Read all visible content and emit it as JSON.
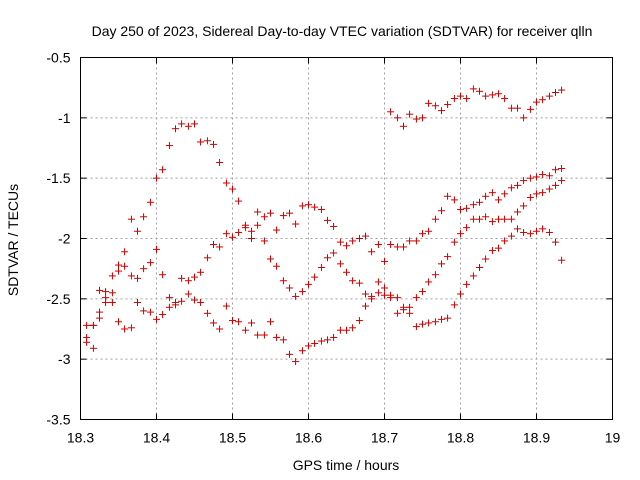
{
  "chart_data": {
    "type": "scatter",
    "title": "Day 250 of 2023, Sidereal Day-to-day VTEC variation (SDTVAR) for receiver qlln",
    "xlabel": "GPS time / hours",
    "ylabel": "SDTVAR / TECUs",
    "xlim": [
      18.3,
      19.0
    ],
    "ylim": [
      -3.5,
      -0.5
    ],
    "xticks": [
      "18.3",
      "18.4",
      "18.5",
      "18.6",
      "18.7",
      "18.8",
      "18.9",
      "19"
    ],
    "yticks": [
      "-0.5",
      "-1",
      "-1.5",
      "-2",
      "-2.5",
      "-3",
      "-3.5"
    ],
    "grid": true,
    "marker": "+",
    "color": "#d00000",
    "series": [
      {
        "x": [
          18.308,
          18.317,
          18.325,
          18.333,
          18.342,
          18.35,
          18.358,
          18.367,
          18.375,
          18.383,
          18.392,
          18.4,
          18.408,
          18.417,
          18.425,
          18.433,
          18.442,
          18.45,
          18.458,
          18.467,
          18.475,
          18.483,
          18.492,
          18.5,
          18.508,
          18.517,
          18.525,
          18.533,
          18.542,
          18.55,
          18.558,
          18.567,
          18.575,
          18.583,
          18.592,
          18.6,
          18.608,
          18.617,
          18.625,
          18.633,
          18.642,
          18.65,
          18.658,
          18.667,
          18.675,
          18.683,
          18.692,
          18.7,
          18.708,
          18.717,
          18.725,
          18.733,
          18.742,
          18.75,
          18.758,
          18.767,
          18.775,
          18.783,
          18.792,
          18.8,
          18.808,
          18.817,
          18.825,
          18.833,
          18.842,
          18.85,
          18.858,
          18.867,
          18.875,
          18.883,
          18.892,
          18.9,
          18.908,
          18.917,
          18.925,
          18.933
        ],
        "y": [
          -2.82,
          -2.72,
          -2.66,
          -2.49,
          -2.45,
          -2.22,
          -2.11,
          -1.84,
          -1.94,
          -1.82,
          -1.7,
          -1.5,
          -1.43,
          -1.23,
          -1.09,
          -1.05,
          -1.07,
          -1.05,
          -1.2,
          -1.19,
          -1.22,
          -1.37,
          -1.54,
          -1.59,
          -1.69,
          -1.89,
          -1.94,
          -1.78,
          -1.82,
          -1.79,
          -1.93,
          -1.81,
          -1.79,
          -1.88,
          -1.73,
          -1.72,
          -1.74,
          -1.76,
          -1.85,
          -1.9,
          -2.03,
          -2.06,
          -2.02,
          -2.0,
          -1.98,
          -2.11,
          -2.05,
          -2.19,
          -2.05,
          -2.07,
          -2.07,
          -2.02,
          -2.02,
          -1.96,
          -1.94,
          -1.84,
          -1.77,
          -1.65,
          -1.68,
          -1.76,
          -1.75,
          -1.72,
          -1.7,
          -1.65,
          -1.62,
          -1.68,
          -1.63,
          -1.58,
          -1.56,
          -1.52,
          -1.5,
          -1.49,
          -1.47,
          -1.48,
          -1.43,
          -1.42
        ]
      },
      {
        "x": [
          18.308,
          18.317,
          18.325,
          18.333,
          18.342,
          18.35,
          18.358,
          18.367,
          18.375,
          18.383,
          18.392,
          18.4,
          18.408,
          18.417,
          18.425,
          18.433,
          18.442,
          18.45,
          18.458,
          18.467,
          18.475,
          18.483,
          18.492,
          18.5,
          18.508,
          18.517,
          18.525,
          18.533,
          18.542,
          18.55,
          18.558,
          18.567,
          18.575,
          18.583,
          18.592,
          18.6,
          18.608,
          18.617,
          18.625,
          18.633,
          18.642,
          18.65,
          18.658,
          18.667,
          18.675,
          18.683,
          18.692,
          18.7,
          18.708,
          18.717,
          18.725,
          18.733,
          18.742,
          18.75,
          18.758,
          18.767,
          18.775,
          18.783,
          18.792,
          18.8,
          18.808,
          18.817,
          18.825,
          18.833,
          18.842,
          18.85,
          18.858,
          18.867,
          18.875,
          18.883,
          18.892,
          18.9,
          18.908,
          18.917,
          18.925,
          18.933
        ],
        "y": [
          -2.72,
          -2.72,
          -2.61,
          -2.44,
          -2.31,
          -2.27,
          -2.23,
          -2.31,
          -2.33,
          -2.25,
          -2.2,
          -2.09,
          -2.3,
          -2.49,
          -2.53,
          -2.33,
          -2.35,
          -2.32,
          -2.28,
          -2.16,
          -2.05,
          -2.07,
          -1.96,
          -1.99,
          -1.95,
          -1.91,
          -2.0,
          -1.89,
          -2.02,
          -2.17,
          -2.23,
          -2.35,
          -2.41,
          -2.48,
          -2.44,
          -2.38,
          -2.32,
          -2.24,
          -2.16,
          -2.12,
          -2.21,
          -2.28,
          -2.35,
          -2.37,
          -2.46,
          -2.48,
          -2.36,
          -2.47,
          -2.47,
          -2.49,
          -2.59,
          -2.57,
          -2.49,
          -2.44,
          -2.36,
          -2.3,
          -2.21,
          -2.15,
          -2.03,
          -1.96,
          -1.91,
          -1.84,
          -1.84,
          -1.82,
          -1.86,
          -1.84,
          -1.84,
          -1.84,
          -1.78,
          -1.73,
          -1.66,
          -1.63,
          -1.62,
          -1.59,
          -1.56,
          -1.52
        ]
      },
      {
        "x": [
          18.308,
          18.317,
          18.325,
          18.333,
          18.342,
          18.35,
          18.358,
          18.367,
          18.375,
          18.383,
          18.392,
          18.4,
          18.408,
          18.417,
          18.425,
          18.433,
          18.442,
          18.45,
          18.458,
          18.467,
          18.475,
          18.483,
          18.492,
          18.5,
          18.508,
          18.517,
          18.525,
          18.533,
          18.542,
          18.55,
          18.558,
          18.567,
          18.575,
          18.583,
          18.592,
          18.6,
          18.608,
          18.617,
          18.625,
          18.633,
          18.642,
          18.65,
          18.658,
          18.667,
          18.675,
          18.683,
          18.692,
          18.7,
          18.708,
          18.717,
          18.725,
          18.733,
          18.742,
          18.75,
          18.758,
          18.767,
          18.775,
          18.783,
          18.792,
          18.8,
          18.808,
          18.817,
          18.825,
          18.833,
          18.842,
          18.85,
          18.858,
          18.867,
          18.875,
          18.883,
          18.892,
          18.9,
          18.908,
          18.917,
          18.925,
          18.933
        ],
        "y": [
          -2.86,
          -2.91,
          -2.43,
          -2.53,
          -2.53,
          -2.69,
          -2.75,
          -2.74,
          -2.53,
          -2.6,
          -2.61,
          -2.67,
          -2.63,
          -2.57,
          -2.55,
          -2.52,
          -2.46,
          -2.51,
          -2.53,
          -2.62,
          -2.7,
          -2.75,
          -2.56,
          -2.68,
          -2.69,
          -2.76,
          -2.7,
          -2.8,
          -2.8,
          -2.69,
          -2.82,
          -2.84,
          -2.96,
          -3.02,
          -2.93,
          -2.89,
          -2.87,
          -2.85,
          -2.84,
          -2.82,
          -2.76,
          -2.76,
          -2.74,
          -2.68,
          -2.56,
          -2.5,
          -2.45,
          -2.41,
          -0.95,
          -1.0,
          -1.07,
          -0.97,
          -1.01,
          -1.0,
          -0.88,
          -0.9,
          -0.94,
          -0.89,
          -0.84,
          -0.82,
          -0.84,
          -0.76,
          -0.78,
          -0.82,
          -0.81,
          -0.8,
          -0.84,
          -0.92,
          -0.92,
          -1.0,
          -0.93,
          -0.87,
          -0.85,
          -0.82,
          -0.79,
          -0.77
        ]
      },
      {
        "x": [
          18.708,
          18.717,
          18.725,
          18.733,
          18.742,
          18.75,
          18.758,
          18.767,
          18.775,
          18.783,
          18.792,
          18.8,
          18.808,
          18.817,
          18.825,
          18.833,
          18.842,
          18.85,
          18.858,
          18.867,
          18.875,
          18.883,
          18.892,
          18.9,
          18.908,
          18.917,
          18.925,
          18.933
        ],
        "y": [
          -2.49,
          -2.62,
          -2.57,
          -2.62,
          -2.73,
          -2.71,
          -2.7,
          -2.69,
          -2.67,
          -2.66,
          -2.55,
          -2.46,
          -2.38,
          -2.31,
          -2.24,
          -2.17,
          -2.1,
          -2.08,
          -2.02,
          -1.98,
          -1.92,
          -1.95,
          -1.96,
          -1.94,
          -1.92,
          -1.95,
          -2.03,
          -2.18
        ]
      }
    ]
  }
}
